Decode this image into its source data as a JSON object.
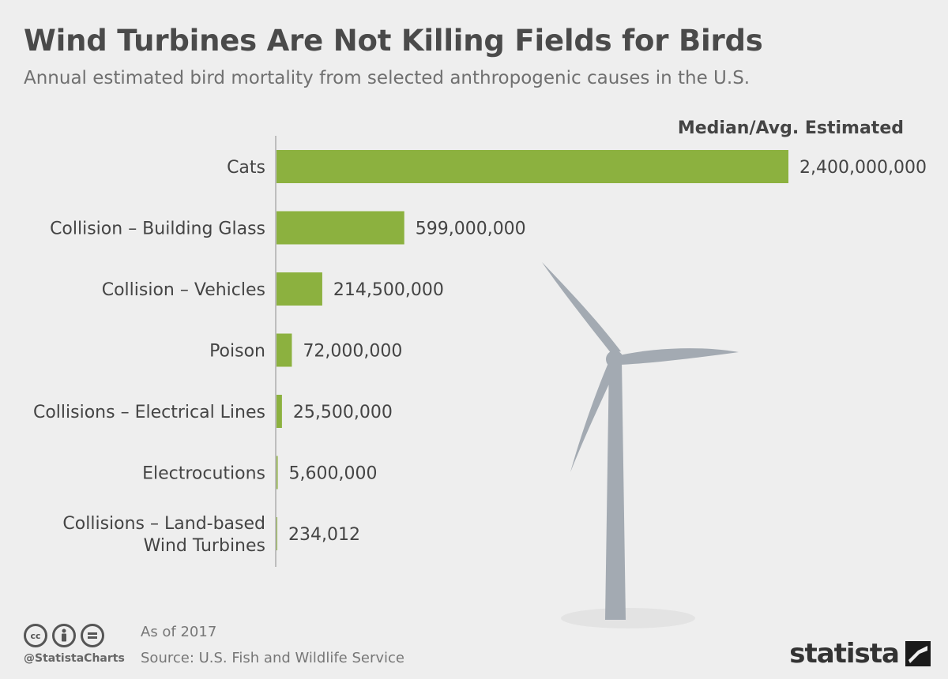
{
  "chart_data": {
    "type": "bar",
    "orientation": "horizontal",
    "title": "Wind Turbines Are Not Killing Fields for Birds",
    "subtitle": "Annual estimated bird mortality from selected anthropogenic causes in the U.S.",
    "value_header": "Median/Avg. Estimated",
    "categories": [
      [
        "Cats"
      ],
      [
        "Collision – Building Glass"
      ],
      [
        "Collision – Vehicles"
      ],
      [
        "Poison"
      ],
      [
        "Collisions – Electrical Lines"
      ],
      [
        "Electrocutions"
      ],
      [
        "Collisions – Land-based",
        "Wind Turbines"
      ]
    ],
    "values": [
      2400000000,
      599000000,
      214500000,
      72000000,
      25500000,
      5600000,
      234012
    ],
    "value_labels": [
      "2,400,000,000",
      "599,000,000",
      "214,500,000",
      "72,000,000",
      "25,500,000",
      "5,600,000",
      "234,012"
    ],
    "bar_color": "#8cb13f",
    "xlim": [
      0,
      2400000000
    ],
    "grid": false
  },
  "footer": {
    "as_of": "As of 2017",
    "source": "Source: U.S. Fish and Wildlife Service",
    "handle": "@StatistaCharts",
    "brand": "statista"
  },
  "icons": [
    "cc-icon",
    "by-icon",
    "nd-icon",
    "wind-turbine-icon",
    "statista-logo-icon"
  ],
  "colors": {
    "title": "#4a4a4a",
    "background": "#eeeeee",
    "turbine": "#a3aab2"
  }
}
